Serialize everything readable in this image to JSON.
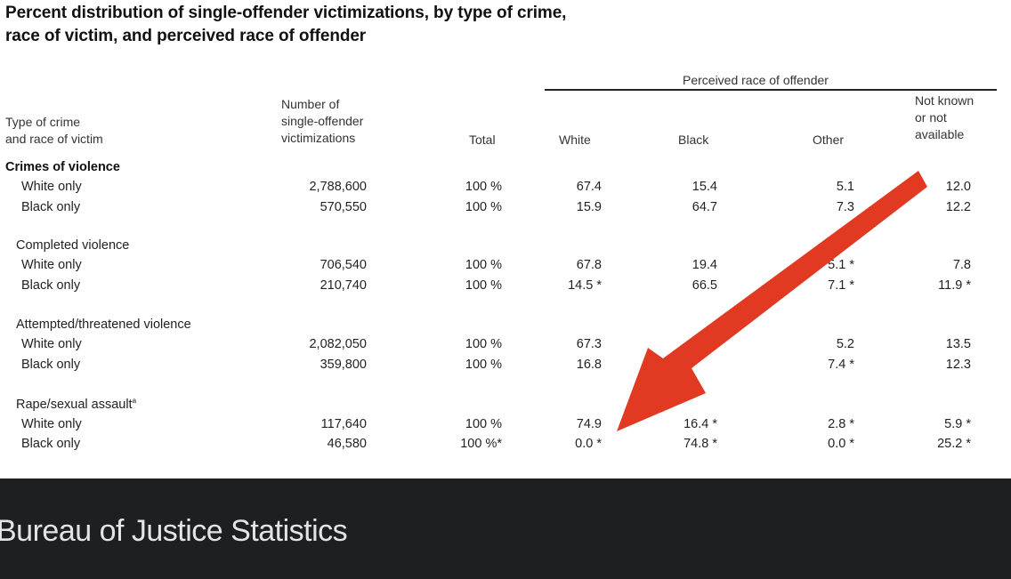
{
  "title_line1": "Percent distribution of single-offender victimizations, by type of crime,",
  "title_line2": "race of victim, and perceived race of offender",
  "headers": {
    "type_of_crime": "Type of crime\nand race of victim",
    "number": "Number of\nsingle-offender\nvictimizations",
    "total": "Total",
    "group": "Perceived race of offender",
    "white": "White",
    "black": "Black",
    "other": "Other",
    "not_known": "Not known\nor not\navailable"
  },
  "section_label": "Crimes of violence",
  "groups": {
    "completed": "Completed violence",
    "attempted": "Attempted/threatened violence",
    "rape": "Rape/sexual assault"
  },
  "rape_footnote": "a",
  "rows": [
    {
      "label": "White only",
      "number": "2,788,600",
      "total": "100 %",
      "white": "67.4",
      "black": "15.4",
      "other": "5.1",
      "not_known": "12.0"
    },
    {
      "label": "Black only",
      "number": "570,550",
      "total": "100 %",
      "white": "15.9",
      "black": "64.7",
      "other": "7.3",
      "not_known": "12.2"
    },
    {
      "label": "White only",
      "number": "706,540",
      "total": "100 %",
      "white": "67.8",
      "black": "19.4",
      "other": "5.1 *",
      "not_known": "7.8"
    },
    {
      "label": "Black only",
      "number": "210,740",
      "total": "100 %",
      "white": "14.5 *",
      "black": "66.5",
      "other": "7.1 *",
      "not_known": "11.9 *"
    },
    {
      "label": "White only",
      "number": "2,082,050",
      "total": "100 %",
      "white": "67.3",
      "black": "",
      "other": "5.2",
      "not_known": "13.5"
    },
    {
      "label": "Black only",
      "number": "359,800",
      "total": "100 %",
      "white": "16.8",
      "black": "",
      "other": "7.4 *",
      "not_known": "12.3"
    },
    {
      "label": "White only",
      "number": "117,640",
      "total": "100 %",
      "white": "74.9",
      "black": "16.4 *",
      "other": "2.8 *",
      "not_known": "5.9 *"
    },
    {
      "label": "Black only",
      "number": "46,580",
      "total": "100 %*",
      "white": "0.0 *",
      "black": "74.8 *",
      "other": "0.0 *",
      "not_known": "25.2 *"
    }
  ],
  "arrow_color": "#e23a22",
  "footer_bg": "#1e1f21",
  "caption": "Bureau of Justice Statistics"
}
